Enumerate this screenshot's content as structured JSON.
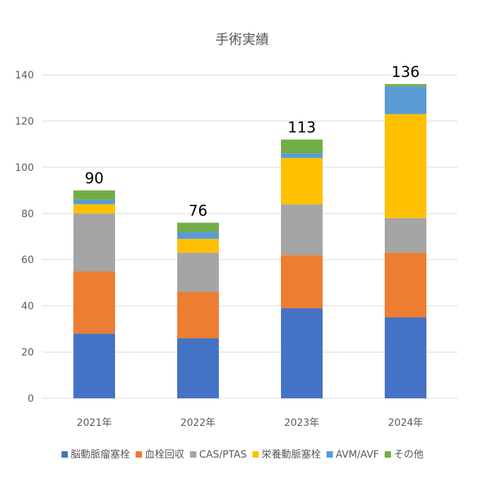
{
  "chart_data": {
    "type": "bar",
    "stacked": true,
    "title": "手術実績",
    "xlabel": "",
    "ylabel": "",
    "ylim": [
      0,
      140
    ],
    "yticks": [
      0,
      20,
      40,
      60,
      80,
      100,
      120,
      140
    ],
    "grid": true,
    "legend": "bottom",
    "categories": [
      "2021年",
      "2022年",
      "2023年",
      "2024年"
    ],
    "totals": [
      90,
      76,
      113,
      136
    ],
    "series": [
      {
        "name": "脳動脈瘤塞栓",
        "color": "#4472c4",
        "values": [
          28,
          26,
          39,
          35
        ]
      },
      {
        "name": "血栓回収",
        "color": "#ed7d31",
        "values": [
          27,
          20,
          23,
          28
        ]
      },
      {
        "name": "CAS/PTAS",
        "color": "#a5a5a5",
        "values": [
          25,
          17,
          22,
          15
        ]
      },
      {
        "name": "栄養動脈塞栓",
        "color": "#ffc000",
        "values": [
          4,
          6,
          20,
          45
        ]
      },
      {
        "name": "AVM/AVF",
        "color": "#5b9bd5",
        "values": [
          2,
          3,
          2,
          12
        ]
      },
      {
        "name": "その他",
        "color": "#70ad47",
        "values": [
          4,
          4,
          6,
          1
        ]
      }
    ]
  }
}
